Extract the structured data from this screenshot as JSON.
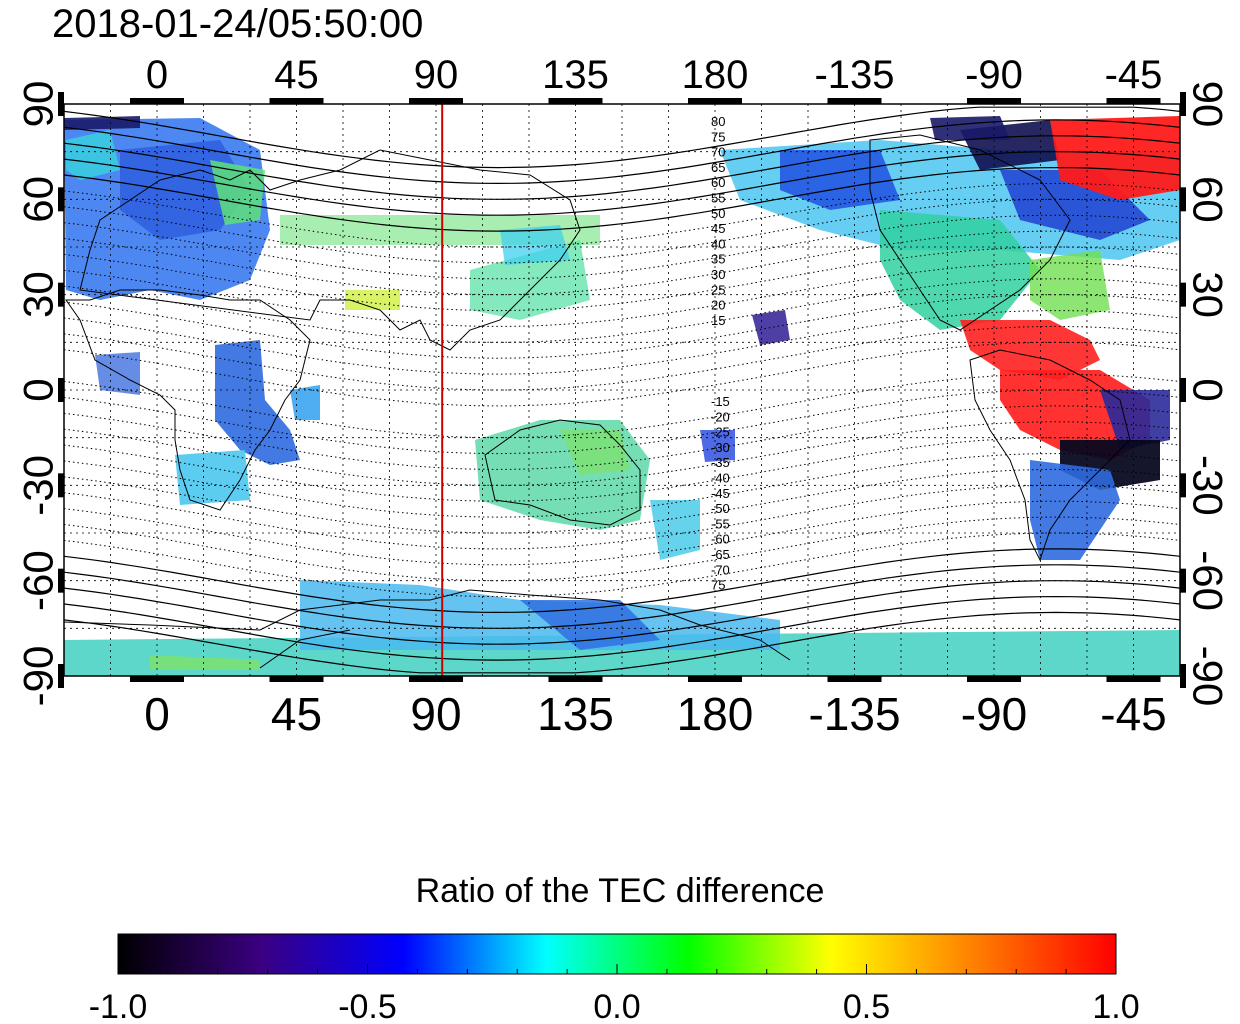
{
  "title": "2018-01-24/05:50:00",
  "map": {
    "top_axis_labels": [
      "0",
      "45",
      "90",
      "135",
      "180",
      "-135",
      "-90",
      "-45"
    ],
    "bottom_axis_labels": [
      "0",
      "45",
      "90",
      "135",
      "180",
      "-135",
      "-90",
      "-45"
    ],
    "left_axis_labels": [
      "90",
      "60",
      "30",
      "0",
      "-30",
      "-60",
      "-90"
    ],
    "right_axis_labels": [
      "90",
      "60",
      "30",
      "0",
      "-30",
      "-60",
      "-90"
    ],
    "terminator_longitude": 92,
    "terminator_color": "#cc0000",
    "contour_labels_north": [
      "80",
      "75",
      "70",
      "65",
      "60",
      "55",
      "50",
      "45",
      "40",
      "35",
      "30",
      "25",
      "20",
      "15"
    ],
    "contour_labels_south": [
      "-15",
      "-20",
      "-25",
      "-30",
      "-35",
      "-40",
      "-45",
      "-50",
      "-55",
      "-60",
      "-65",
      "-70",
      "75"
    ]
  },
  "colorbar": {
    "title": "Ratio of the TEC difference",
    "tick_labels": [
      "-1.0",
      "-0.5",
      "0.0",
      "0.5",
      "1.0"
    ],
    "range": [
      -1.0,
      1.0
    ],
    "stops": [
      "#000000",
      "#3a0080",
      "#0000ff",
      "#00ffff",
      "#00ff00",
      "#ffff00",
      "#ff8000",
      "#ff0000"
    ]
  }
}
